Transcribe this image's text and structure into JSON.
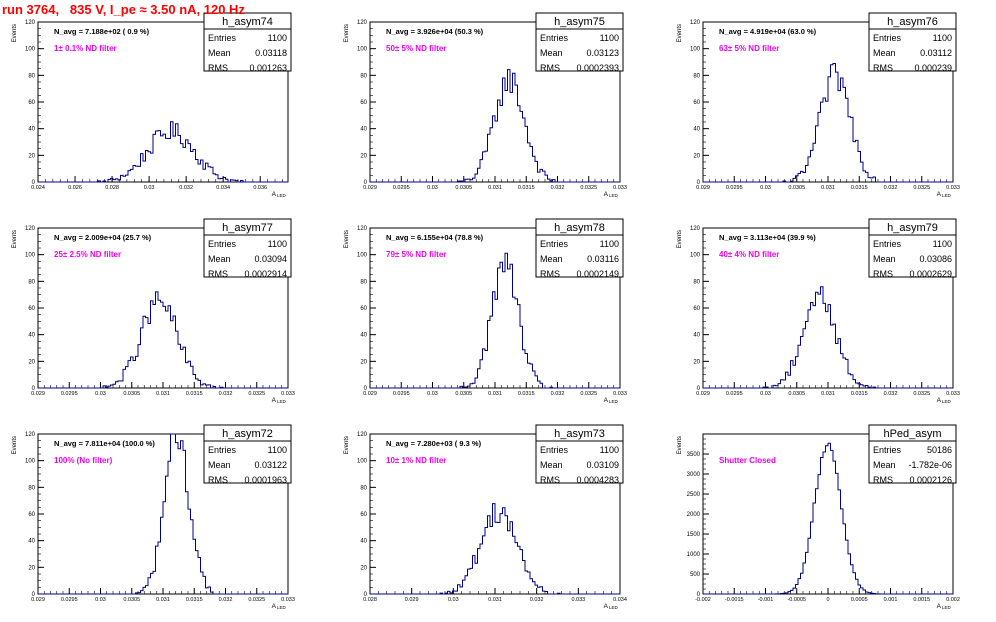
{
  "run_title": "run 3764,   835 V, I_pe ≈ 3.50 nA, 120 Hz",
  "chart_data": [
    {
      "type": "histogram",
      "name": "h_asym74",
      "navg": "N_avg = 7.188e+02 ( 0.9 %)",
      "filter": "1± 0.1% ND filter",
      "stats": [
        [
          "Entries",
          "1100"
        ],
        [
          "Mean",
          "0.03118"
        ],
        [
          "RMS",
          "0.001263"
        ]
      ],
      "xlabel": "A_LED",
      "ylabel": "Events",
      "xlim": [
        0.024,
        0.0375
      ],
      "ylim": [
        0,
        120
      ],
      "xticks": [
        {
          "v": 0.024,
          "t": "0.024"
        },
        {
          "v": 0.026,
          "t": "0.026"
        },
        {
          "v": 0.028,
          "t": "0.028"
        },
        {
          "v": 0.03,
          "t": "0.03"
        },
        {
          "v": 0.032,
          "t": "0.032"
        },
        {
          "v": 0.034,
          "t": "0.034"
        },
        {
          "v": 0.036,
          "t": "0.036"
        }
      ],
      "yticks": [
        0,
        20,
        40,
        60,
        80,
        100,
        120
      ],
      "mean": 0.03118,
      "sigma": 0.001263,
      "peak": 38
    },
    {
      "type": "histogram",
      "name": "h_asym75",
      "navg": "N_avg = 3.926e+04 (50.3 %)",
      "filter": "50± 5% ND filter",
      "stats": [
        [
          "Entries",
          "1100"
        ],
        [
          "Mean",
          "0.03123"
        ],
        [
          "RMS",
          "0.0002393"
        ]
      ],
      "xlabel": "A_LED",
      "ylabel": "Events",
      "xlim": [
        0.029,
        0.033
      ],
      "ylim": [
        0,
        120
      ],
      "xticks": [
        {
          "v": 0.029,
          "t": "0.029"
        },
        {
          "v": 0.0295,
          "t": "0.0295"
        },
        {
          "v": 0.03,
          "t": "0.03"
        },
        {
          "v": 0.0305,
          "t": "0.0305"
        },
        {
          "v": 0.031,
          "t": "0.031"
        },
        {
          "v": 0.0315,
          "t": "0.0315"
        },
        {
          "v": 0.032,
          "t": "0.032"
        },
        {
          "v": 0.0325,
          "t": "0.0325"
        },
        {
          "v": 0.033,
          "t": "0.033"
        }
      ],
      "yticks": [
        0,
        20,
        40,
        60,
        80,
        100,
        120
      ],
      "mean": 0.03123,
      "sigma": 0.0002393,
      "peak": 77
    },
    {
      "type": "histogram",
      "name": "h_asym76",
      "navg": "N_avg = 4.919e+04 (63.0 %)",
      "filter": "63± 5% ND filter",
      "stats": [
        [
          "Entries",
          "1100"
        ],
        [
          "Mean",
          "0.03112"
        ],
        [
          "RMS",
          "0.000239"
        ]
      ],
      "xlabel": "A_LED",
      "ylabel": "Events",
      "xlim": [
        0.029,
        0.033
      ],
      "ylim": [
        0,
        120
      ],
      "xticks": [
        {
          "v": 0.029,
          "t": "0.029"
        },
        {
          "v": 0.0295,
          "t": "0.0295"
        },
        {
          "v": 0.03,
          "t": "0.03"
        },
        {
          "v": 0.0305,
          "t": "0.0305"
        },
        {
          "v": 0.031,
          "t": "0.031"
        },
        {
          "v": 0.0315,
          "t": "0.0315"
        },
        {
          "v": 0.032,
          "t": "0.032"
        },
        {
          "v": 0.0325,
          "t": "0.0325"
        },
        {
          "v": 0.033,
          "t": "0.033"
        }
      ],
      "yticks": [
        0,
        20,
        40,
        60,
        80,
        100,
        120
      ],
      "mean": 0.03112,
      "sigma": 0.000239,
      "peak": 80
    },
    {
      "type": "histogram",
      "name": "h_asym77",
      "navg": "N_avg = 2.009e+04 (25.7 %)",
      "filter": "25± 2.5% ND filter",
      "stats": [
        [
          "Entries",
          "1100"
        ],
        [
          "Mean",
          "0.03094"
        ],
        [
          "RMS",
          "0.0002914"
        ]
      ],
      "xlabel": "A_LED",
      "ylabel": "Events",
      "xlim": [
        0.029,
        0.033
      ],
      "ylim": [
        0,
        120
      ],
      "xticks": [
        {
          "v": 0.029,
          "t": "0.029"
        },
        {
          "v": 0.0295,
          "t": "0.0295"
        },
        {
          "v": 0.03,
          "t": "0.03"
        },
        {
          "v": 0.0305,
          "t": "0.0305"
        },
        {
          "v": 0.031,
          "t": "0.031"
        },
        {
          "v": 0.0315,
          "t": "0.0315"
        },
        {
          "v": 0.032,
          "t": "0.032"
        },
        {
          "v": 0.0325,
          "t": "0.0325"
        },
        {
          "v": 0.033,
          "t": "0.033"
        }
      ],
      "yticks": [
        0,
        20,
        40,
        60,
        80,
        100,
        120
      ],
      "mean": 0.03094,
      "sigma": 0.0002914,
      "peak": 65
    },
    {
      "type": "histogram",
      "name": "h_asym78",
      "navg": "N_avg = 6.155e+04 (78.8 %)",
      "filter": "79± 5% ND filter",
      "stats": [
        [
          "Entries",
          "1100"
        ],
        [
          "Mean",
          "0.03116"
        ],
        [
          "RMS",
          "0.0002149"
        ]
      ],
      "xlabel": "A_LED",
      "ylabel": "Events",
      "xlim": [
        0.029,
        0.033
      ],
      "ylim": [
        0,
        120
      ],
      "xticks": [
        {
          "v": 0.029,
          "t": "0.029"
        },
        {
          "v": 0.0295,
          "t": "0.0295"
        },
        {
          "v": 0.03,
          "t": "0.03"
        },
        {
          "v": 0.0305,
          "t": "0.0305"
        },
        {
          "v": 0.031,
          "t": "0.031"
        },
        {
          "v": 0.0315,
          "t": "0.0315"
        },
        {
          "v": 0.032,
          "t": "0.032"
        },
        {
          "v": 0.0325,
          "t": "0.0325"
        },
        {
          "v": 0.033,
          "t": "0.033"
        }
      ],
      "yticks": [
        0,
        20,
        40,
        60,
        80,
        100,
        120
      ],
      "mean": 0.03116,
      "sigma": 0.0002149,
      "peak": 93
    },
    {
      "type": "histogram",
      "name": "h_asym79",
      "navg": "N_avg = 3.113e+04 (39.9 %)",
      "filter": "40± 4% ND filter",
      "stats": [
        [
          "Entries",
          "1100"
        ],
        [
          "Mean",
          "0.03086"
        ],
        [
          "RMS",
          "0.0002629"
        ]
      ],
      "xlabel": "A_LED",
      "ylabel": "Events",
      "xlim": [
        0.029,
        0.033
      ],
      "ylim": [
        0,
        120
      ],
      "xticks": [
        {
          "v": 0.029,
          "t": "0.029"
        },
        {
          "v": 0.0295,
          "t": "0.0295"
        },
        {
          "v": 0.03,
          "t": "0.03"
        },
        {
          "v": 0.0305,
          "t": "0.0305"
        },
        {
          "v": 0.031,
          "t": "0.031"
        },
        {
          "v": 0.0315,
          "t": "0.0315"
        },
        {
          "v": 0.032,
          "t": "0.032"
        },
        {
          "v": 0.0325,
          "t": "0.0325"
        },
        {
          "v": 0.033,
          "t": "0.033"
        }
      ],
      "yticks": [
        0,
        20,
        40,
        60,
        80,
        100,
        120
      ],
      "mean": 0.03086,
      "sigma": 0.0002629,
      "peak": 70
    },
    {
      "type": "histogram",
      "name": "h_asym72",
      "navg": "N_avg = 7.811e+04 (100.0 %)",
      "filter": "100% (No filter)",
      "stats": [
        [
          "Entries",
          "1100"
        ],
        [
          "Mean",
          "0.03122"
        ],
        [
          "RMS",
          "0.0001963"
        ]
      ],
      "xlabel": "A_LED",
      "ylabel": "Events",
      "xlim": [
        0.029,
        0.033
      ],
      "ylim": [
        0,
        120
      ],
      "xticks": [
        {
          "v": 0.029,
          "t": "0.029"
        },
        {
          "v": 0.0295,
          "t": "0.0295"
        },
        {
          "v": 0.03,
          "t": "0.03"
        },
        {
          "v": 0.0305,
          "t": "0.0305"
        },
        {
          "v": 0.031,
          "t": "0.031"
        },
        {
          "v": 0.0315,
          "t": "0.0315"
        },
        {
          "v": 0.032,
          "t": "0.032"
        },
        {
          "v": 0.0325,
          "t": "0.0325"
        },
        {
          "v": 0.033,
          "t": "0.033"
        }
      ],
      "yticks": [
        0,
        20,
        40,
        60,
        80,
        100,
        120
      ],
      "mean": 0.03122,
      "sigma": 0.0001963,
      "peak": 120
    },
    {
      "type": "histogram",
      "name": "h_asym73",
      "navg": "N_avg = 7.280e+03 ( 9.3 %)",
      "filter": "10± 1% ND filter",
      "stats": [
        [
          "Entries",
          "1100"
        ],
        [
          "Mean",
          "0.03109"
        ],
        [
          "RMS",
          "0.0004283"
        ]
      ],
      "xlabel": "A_LED",
      "ylabel": "Events",
      "xlim": [
        0.028,
        0.034
      ],
      "ylim": [
        0,
        120
      ],
      "xticks": [
        {
          "v": 0.028,
          "t": "0.028"
        },
        {
          "v": 0.029,
          "t": "0.029"
        },
        {
          "v": 0.03,
          "t": "0.03"
        },
        {
          "v": 0.031,
          "t": "0.031"
        },
        {
          "v": 0.032,
          "t": "0.032"
        },
        {
          "v": 0.033,
          "t": "0.033"
        },
        {
          "v": 0.034,
          "t": "0.034"
        }
      ],
      "yticks": [
        0,
        20,
        40,
        60,
        80,
        100,
        120
      ],
      "mean": 0.03109,
      "sigma": 0.0004283,
      "peak": 63
    },
    {
      "type": "histogram",
      "name": "hPed_asym",
      "navg": "",
      "filter": "Shutter Closed",
      "stats": [
        [
          "Entries",
          "50186"
        ],
        [
          "Mean",
          "-1.782e-06"
        ],
        [
          "RMS",
          "0.0002126"
        ]
      ],
      "xlabel": "A_LED",
      "ylabel": "Events",
      "xlim": [
        -0.002,
        0.002
      ],
      "ylim": [
        0,
        4000
      ],
      "xticks": [
        {
          "v": -0.002,
          "t": "-0.002"
        },
        {
          "v": -0.0015,
          "t": "-0.0015"
        },
        {
          "v": -0.001,
          "t": "-0.001"
        },
        {
          "v": -0.0005,
          "t": "-0.0005"
        },
        {
          "v": 0,
          "t": "0"
        },
        {
          "v": 0.0005,
          "t": "0.0005"
        },
        {
          "v": 0.001,
          "t": "0.001"
        },
        {
          "v": 0.0015,
          "t": "0.0015"
        },
        {
          "v": 0.002,
          "t": "0.002"
        }
      ],
      "yticks": [
        0,
        500,
        1000,
        1500,
        2000,
        2500,
        3000,
        3500
      ],
      "mean": -1.782e-06,
      "sigma": 0.0002126,
      "peak": 3760
    }
  ]
}
